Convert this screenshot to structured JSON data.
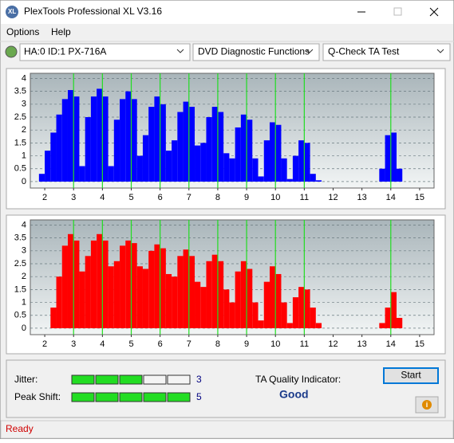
{
  "window": {
    "title": "PlexTools Professional XL V3.16"
  },
  "menu": [
    "Options",
    "Help"
  ],
  "toolbar": {
    "drive": "HA:0 ID:1  PX-716A",
    "function": "DVD Diagnostic Functions",
    "test": "Q-Check TA Test"
  },
  "charts": [
    {
      "type": "bar",
      "color": "#0000ff",
      "grid": true,
      "marker_color": "#22dd22",
      "xlim": [
        1.5,
        15.5
      ],
      "ylim": [
        -0.25,
        4.2
      ],
      "xticks": [
        2,
        3,
        4,
        5,
        6,
        7,
        8,
        9,
        10,
        11,
        12,
        13,
        14,
        15
      ],
      "yticks": [
        0,
        0.5,
        1,
        1.5,
        2,
        2.5,
        3,
        3.5,
        4
      ],
      "markers": [
        3,
        4,
        5,
        6,
        7,
        8,
        9,
        10,
        11,
        14
      ],
      "x": [
        1.9,
        2.1,
        2.3,
        2.5,
        2.7,
        2.9,
        3.1,
        3.3,
        3.5,
        3.7,
        3.9,
        4.1,
        4.3,
        4.5,
        4.7,
        4.9,
        5.1,
        5.3,
        5.5,
        5.7,
        5.9,
        6.1,
        6.3,
        6.5,
        6.7,
        6.9,
        7.1,
        7.3,
        7.5,
        7.7,
        7.9,
        8.1,
        8.3,
        8.5,
        8.7,
        8.9,
        9.1,
        9.3,
        9.5,
        9.7,
        9.9,
        10.1,
        10.3,
        10.5,
        10.7,
        10.9,
        11.1,
        11.3,
        11.5,
        11.7,
        11.9,
        12.1,
        12.3,
        12.5,
        12.7,
        12.9,
        13.1,
        13.3,
        13.5,
        13.7,
        13.9,
        14.1,
        14.3,
        14.5
      ],
      "values": [
        0.3,
        1.2,
        1.9,
        2.6,
        3.2,
        3.55,
        3.3,
        0.6,
        2.5,
        3.3,
        3.6,
        3.3,
        0.6,
        2.4,
        3.2,
        3.5,
        3.2,
        1.0,
        1.8,
        2.9,
        3.3,
        3.0,
        1.2,
        1.6,
        2.7,
        3.1,
        2.9,
        1.4,
        1.5,
        2.5,
        2.9,
        2.7,
        1.1,
        0.9,
        2.1,
        2.6,
        2.4,
        0.9,
        0.2,
        1.6,
        2.3,
        2.2,
        0.9,
        0.1,
        1.0,
        1.6,
        1.5,
        0.3,
        0.05,
        0,
        0,
        0,
        0,
        0,
        0,
        0,
        0,
        0,
        0,
        0.5,
        1.8,
        1.9,
        0.5,
        0
      ]
    },
    {
      "type": "bar",
      "color": "#ff0000",
      "grid": true,
      "marker_color": "#22dd22",
      "xlim": [
        1.5,
        15.5
      ],
      "ylim": [
        -0.25,
        4.2
      ],
      "xticks": [
        2,
        3,
        4,
        5,
        6,
        7,
        8,
        9,
        10,
        11,
        12,
        13,
        14,
        15
      ],
      "yticks": [
        0,
        0.5,
        1,
        1.5,
        2,
        2.5,
        3,
        3.5,
        4
      ],
      "markers": [
        3,
        4,
        5,
        6,
        7,
        8,
        9,
        10,
        11,
        14
      ],
      "x": [
        1.9,
        2.1,
        2.3,
        2.5,
        2.7,
        2.9,
        3.1,
        3.3,
        3.5,
        3.7,
        3.9,
        4.1,
        4.3,
        4.5,
        4.7,
        4.9,
        5.1,
        5.3,
        5.5,
        5.7,
        5.9,
        6.1,
        6.3,
        6.5,
        6.7,
        6.9,
        7.1,
        7.3,
        7.5,
        7.7,
        7.9,
        8.1,
        8.3,
        8.5,
        8.7,
        8.9,
        9.1,
        9.3,
        9.5,
        9.7,
        9.9,
        10.1,
        10.3,
        10.5,
        10.7,
        10.9,
        11.1,
        11.3,
        11.5,
        11.7,
        11.9,
        12.1,
        12.3,
        12.5,
        12.7,
        12.9,
        13.1,
        13.3,
        13.5,
        13.7,
        13.9,
        14.1,
        14.3,
        14.5
      ],
      "values": [
        0,
        0,
        0.8,
        2.0,
        3.2,
        3.65,
        3.4,
        2.2,
        2.8,
        3.4,
        3.65,
        3.4,
        2.4,
        2.6,
        3.2,
        3.4,
        3.3,
        2.4,
        2.3,
        3.0,
        3.25,
        3.1,
        2.1,
        2.0,
        2.8,
        3.05,
        2.8,
        1.8,
        1.6,
        2.6,
        2.85,
        2.6,
        1.5,
        1.0,
        2.2,
        2.6,
        2.3,
        1.0,
        0.3,
        1.8,
        2.4,
        2.1,
        1.0,
        0.2,
        1.2,
        1.6,
        1.5,
        0.8,
        0.2,
        0,
        0,
        0,
        0,
        0,
        0,
        0,
        0,
        0,
        0,
        0.2,
        0.8,
        1.4,
        0.4,
        0
      ]
    }
  ],
  "results": {
    "jitter": {
      "label": "Jitter:",
      "value": 3
    },
    "peak_shift": {
      "label": "Peak Shift:",
      "value": 5
    },
    "ta_label": "TA Quality Indicator:",
    "ta_value": "Good"
  },
  "buttons": {
    "start": "Start"
  },
  "status": "Ready"
}
